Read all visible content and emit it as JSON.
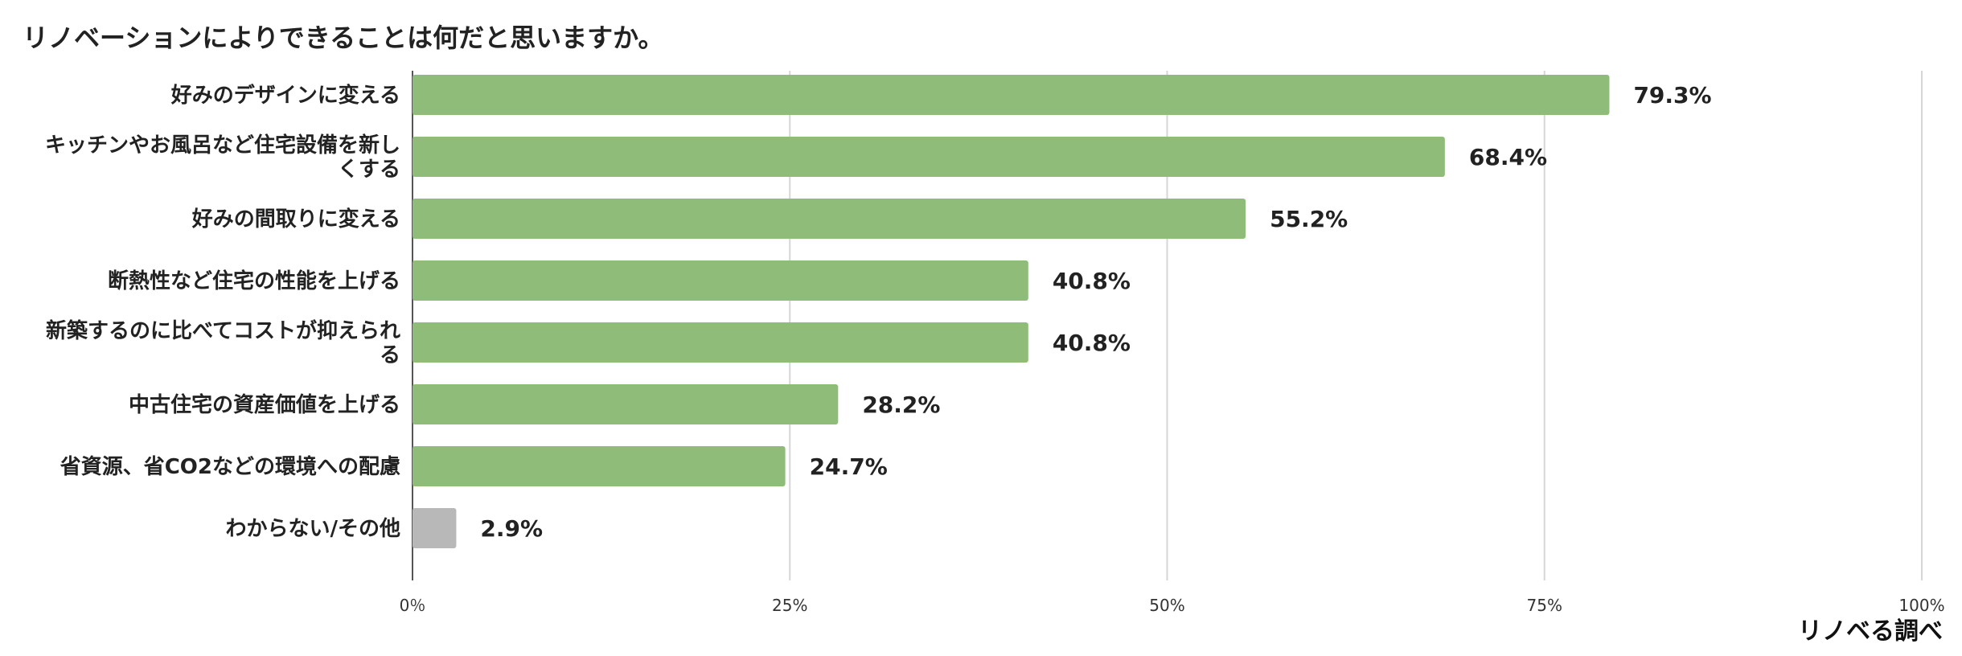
{
  "title": "リノベーションによりできることは何だと思いますか。",
  "source": "リノベる調べ",
  "chart_data": {
    "type": "bar",
    "orientation": "horizontal",
    "title": "リノベーションによりできることは何だと思いますか。",
    "categories": [
      [
        "好みのデザインに変える"
      ],
      [
        "キッチンやお風呂など住宅設備を新し",
        "くする"
      ],
      [
        "好みの間取りに変える"
      ],
      [
        "断熱性など住宅の性能を上げる"
      ],
      [
        "新築するのに比べてコストが抑えられ",
        "る"
      ],
      [
        "中古住宅の資産価値を上げる"
      ],
      [
        "省資源、省CO2などの環境への配慮"
      ],
      [
        "わからない/その他"
      ]
    ],
    "values": [
      79.3,
      68.4,
      55.2,
      40.8,
      40.8,
      28.2,
      24.7,
      2.9
    ],
    "value_labels": [
      "79.3%",
      "68.4%",
      "55.2%",
      "40.8%",
      "40.8%",
      "28.2%",
      "24.7%",
      "2.9%"
    ],
    "bar_colors": [
      "#8fbc79",
      "#8fbc79",
      "#8fbc79",
      "#8fbc79",
      "#8fbc79",
      "#8fbc79",
      "#8fbc79",
      "#b8b8b8"
    ],
    "xlim": [
      0,
      100
    ],
    "xticks": [
      0,
      25,
      50,
      75,
      100
    ],
    "xtick_labels": [
      "0％",
      "25%",
      "50%",
      "75%",
      "100%"
    ],
    "grid": true,
    "gridline_color": "#d6d6d6",
    "axis_color": "#555555"
  }
}
